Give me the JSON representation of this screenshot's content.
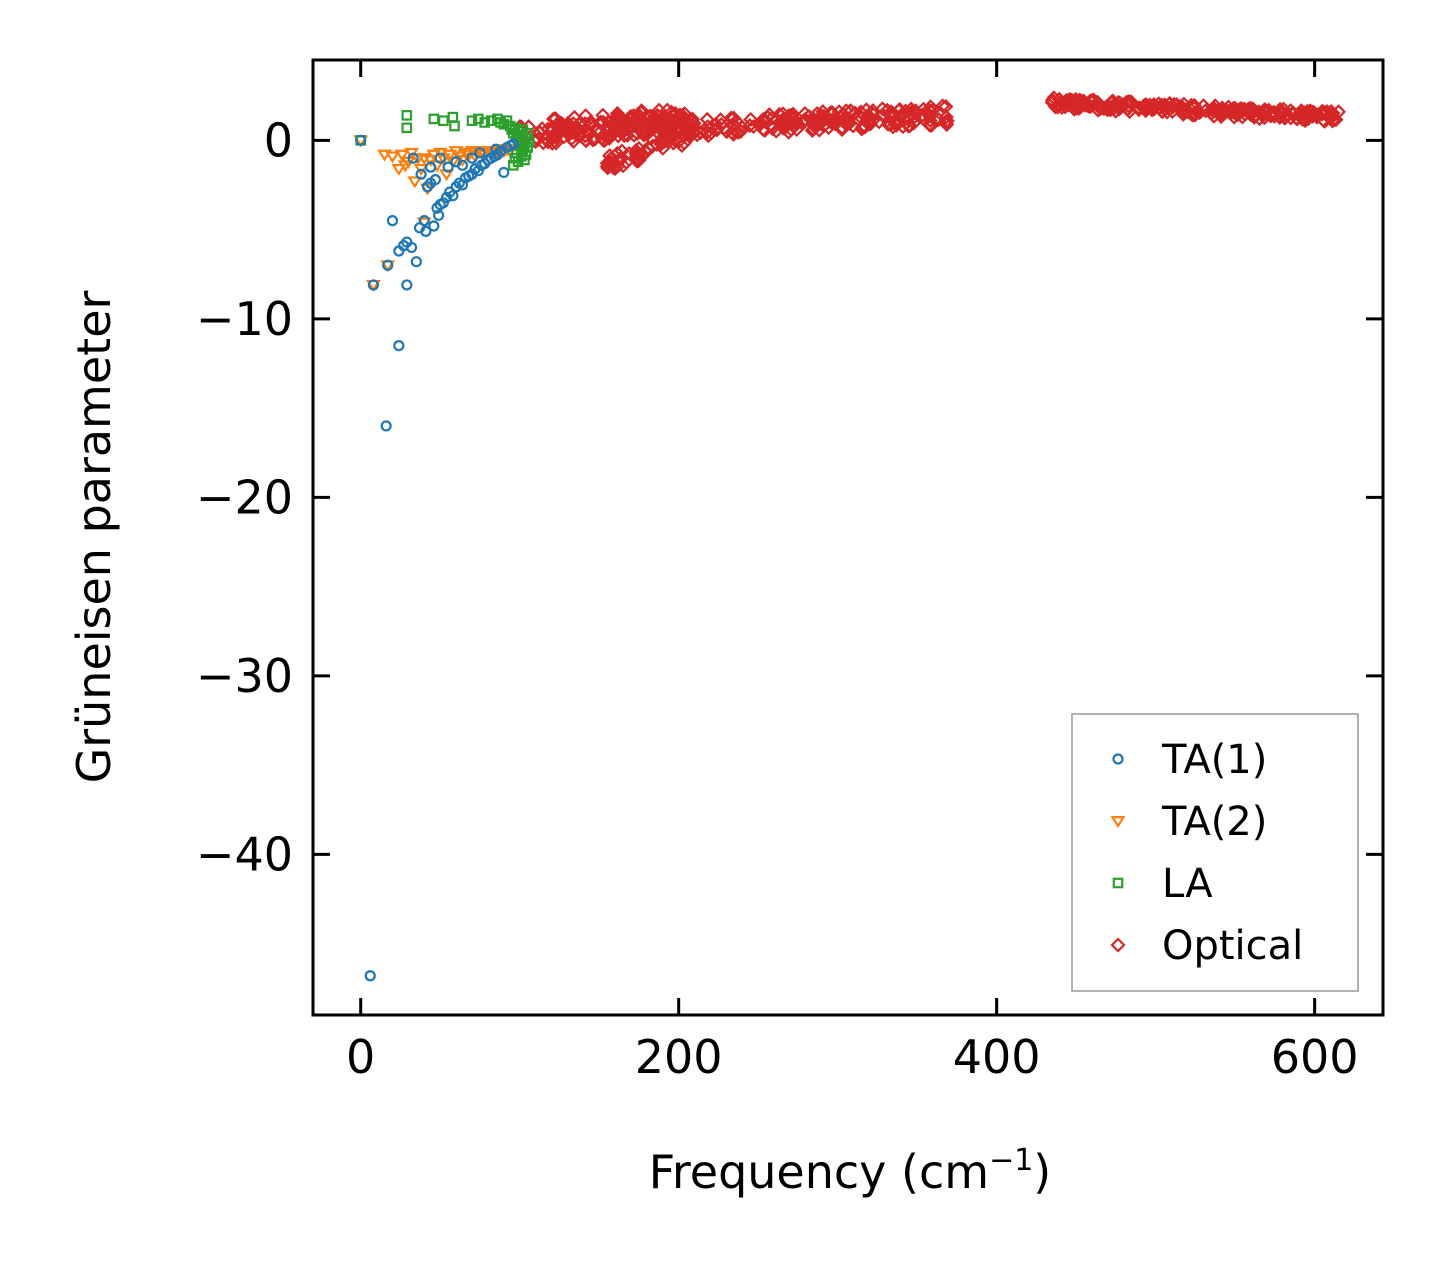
{
  "chart_data": {
    "type": "scatter",
    "title": "",
    "xlabel_main": "Frequency (cm",
    "xlabel_sup": "−1",
    "xlabel_end": ")",
    "ylabel": "Grüneisen parameter",
    "xlim": [
      -30,
      643
    ],
    "ylim": [
      -49.0,
      4.5
    ],
    "xticks": [
      0,
      200,
      400,
      600
    ],
    "xtick_labels": [
      "0",
      "200",
      "400",
      "600"
    ],
    "yticks": [
      0,
      -10,
      -20,
      -30,
      -40
    ],
    "ytick_labels": [
      "0",
      "−10",
      "−20",
      "−30",
      "−40"
    ],
    "grid": false,
    "legend_position": "lower-right",
    "series": [
      {
        "name": "TA(1)",
        "marker": "circle",
        "color": "#1f77b4",
        "points": [
          [
            0,
            0
          ],
          [
            6,
            -46.8
          ],
          [
            8,
            -8.1
          ],
          [
            16,
            -16
          ],
          [
            17,
            -7.0
          ],
          [
            20,
            -4.5
          ],
          [
            24,
            -11.5
          ],
          [
            24,
            -6.2
          ],
          [
            27,
            -5.9
          ],
          [
            29,
            -8.1
          ],
          [
            29,
            -5.7
          ],
          [
            32,
            -6.0
          ],
          [
            35,
            -6.8
          ],
          [
            37,
            -4.9
          ],
          [
            40,
            -4.5
          ],
          [
            41,
            -5.1
          ],
          [
            42,
            -2.6
          ],
          [
            44,
            -2.4
          ],
          [
            46,
            -4.8
          ],
          [
            47,
            -2.2
          ],
          [
            48,
            -3.8
          ],
          [
            49,
            -4.2
          ],
          [
            50,
            -3.6
          ],
          [
            52,
            -3.5
          ],
          [
            54,
            -3.2
          ],
          [
            56,
            -2.9
          ],
          [
            58,
            -3.1
          ],
          [
            60,
            -2.6
          ],
          [
            62,
            -2.4
          ],
          [
            64,
            -2.5
          ],
          [
            66,
            -2.1
          ],
          [
            68,
            -2.0
          ],
          [
            70,
            -1.9
          ],
          [
            72,
            -1.6
          ],
          [
            74,
            -1.7
          ],
          [
            76,
            -1.4
          ],
          [
            78,
            -1.3
          ],
          [
            80,
            -1.1
          ],
          [
            82,
            -1.0
          ],
          [
            84,
            -0.9
          ],
          [
            86,
            -0.8
          ],
          [
            88,
            -0.6
          ],
          [
            90,
            -1.8
          ],
          [
            92,
            -0.4
          ],
          [
            94,
            -0.3
          ],
          [
            96,
            -0.2
          ],
          [
            60,
            -1.2
          ],
          [
            64,
            -1.4
          ],
          [
            70,
            -1.0
          ],
          [
            50,
            -1.0
          ],
          [
            44,
            -1.5
          ],
          [
            38,
            -1.9
          ],
          [
            33,
            -1.0
          ],
          [
            55,
            -1.5
          ],
          [
            75,
            -0.7
          ],
          [
            85,
            -0.5
          ]
        ]
      },
      {
        "name": "TA(2)",
        "marker": "triangle",
        "color": "#ff7f0e",
        "points": [
          [
            0,
            0
          ],
          [
            8,
            -8.1
          ],
          [
            17,
            -7.0
          ],
          [
            15,
            -0.8
          ],
          [
            20,
            -0.9
          ],
          [
            24,
            -1.6
          ],
          [
            26,
            -0.8
          ],
          [
            30,
            -1.2
          ],
          [
            32,
            -0.7
          ],
          [
            34,
            -2.3
          ],
          [
            36,
            -1.0
          ],
          [
            38,
            -1.6
          ],
          [
            40,
            -1.0
          ],
          [
            42,
            -2.7
          ],
          [
            44,
            -1.1
          ],
          [
            46,
            -0.8
          ],
          [
            48,
            -1.4
          ],
          [
            50,
            -0.7
          ],
          [
            52,
            -1.0
          ],
          [
            54,
            -1.9
          ],
          [
            56,
            -0.8
          ],
          [
            58,
            -1.2
          ],
          [
            60,
            -0.6
          ],
          [
            62,
            -0.9
          ],
          [
            64,
            -1.1
          ],
          [
            66,
            -0.7
          ],
          [
            68,
            -0.8
          ],
          [
            70,
            -0.6
          ],
          [
            72,
            -0.9
          ],
          [
            74,
            -0.6
          ],
          [
            76,
            -0.7
          ],
          [
            78,
            -0.8
          ],
          [
            80,
            -0.6
          ],
          [
            82,
            -0.7
          ],
          [
            84,
            -0.6
          ],
          [
            86,
            -0.7
          ],
          [
            88,
            -0.5
          ],
          [
            90,
            -0.6
          ],
          [
            92,
            -0.5
          ],
          [
            94,
            -0.6
          ],
          [
            40,
            -4.6
          ],
          [
            28,
            -1.4
          ]
        ]
      },
      {
        "name": "LA",
        "marker": "square",
        "color": "#2ca02c",
        "points": [
          [
            0,
            0
          ],
          [
            29,
            1.4
          ],
          [
            29,
            0.7
          ],
          [
            46,
            1.2
          ],
          [
            52,
            1.1
          ],
          [
            58,
            1.3
          ],
          [
            59,
            0.8
          ],
          [
            70,
            1.1
          ],
          [
            74,
            1.2
          ],
          [
            78,
            1.0
          ],
          [
            82,
            1.1
          ],
          [
            86,
            1.2
          ],
          [
            88,
            1.0
          ],
          [
            90,
            0.9
          ],
          [
            92,
            1.1
          ],
          [
            94,
            0.8
          ],
          [
            95,
            0.6
          ],
          [
            96,
            0.4
          ],
          [
            97,
            0.7
          ],
          [
            98,
            0.2
          ],
          [
            99,
            0.5
          ],
          [
            100,
            0.0
          ],
          [
            100,
            -0.3
          ],
          [
            101,
            0.3
          ],
          [
            102,
            -0.5
          ],
          [
            102,
            0.6
          ],
          [
            103,
            -0.2
          ],
          [
            104,
            -0.8
          ],
          [
            104,
            0.1
          ],
          [
            105,
            -0.4
          ],
          [
            96,
            -1.4
          ],
          [
            97,
            -1.0
          ],
          [
            98,
            -0.7
          ],
          [
            99,
            -1.2
          ],
          [
            101,
            -0.9
          ],
          [
            103,
            -1.1
          ],
          [
            105,
            0.4
          ],
          [
            106,
            -0.1
          ]
        ]
      },
      {
        "name": "Optical",
        "marker": "diamond",
        "color": "#d62728",
        "segments": [
          {
            "x0": 100,
            "x1": 370,
            "y0": 0.3,
            "y1": 1.4,
            "jitter": 0.55,
            "count": 300
          },
          {
            "x0": 120,
            "x1": 210,
            "y0": 0.8,
            "y1": 0.9,
            "jitter": 0.6,
            "count": 80
          },
          {
            "x0": 155,
            "x1": 205,
            "y0": -1.3,
            "y1": 0.2,
            "jitter": 0.45,
            "count": 60
          },
          {
            "x0": 160,
            "x1": 200,
            "y0": 1.2,
            "y1": 1.3,
            "jitter": 0.45,
            "count": 40
          },
          {
            "x0": 435,
            "x1": 615,
            "y0": 2.1,
            "y1": 1.3,
            "jitter": 0.3,
            "count": 260
          }
        ]
      }
    ]
  }
}
